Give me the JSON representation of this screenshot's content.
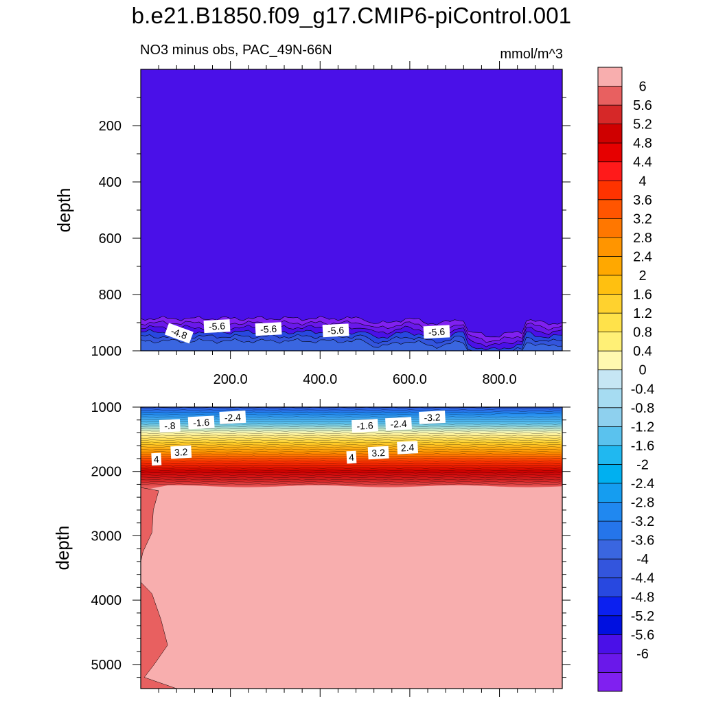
{
  "figure": {
    "title": "b.e21.B1850.f09_g17.CMIP6-piControl.001",
    "left_subtitle": "NO3 minus obs, PAC_49N-66N",
    "right_subtitle": "mmol/m^3"
  },
  "chart_data": [
    {
      "type": "heatmap",
      "panel": "upper",
      "ylabel": "depth",
      "xlabel": "",
      "x_ticks": [
        "200.0",
        "400.0",
        "600.0",
        "800.0"
      ],
      "y_ticks": [
        "200",
        "400",
        "600",
        "800",
        "1000"
      ],
      "xlim": [
        0,
        940
      ],
      "ylim": [
        0,
        1000
      ],
      "y_reversed": true,
      "background_value": -6,
      "bottom_band_depth": [
        885,
        1000
      ],
      "contour_labels": [
        {
          "text": "-4.8",
          "x": 85,
          "depth": 940
        },
        {
          "text": "-5.6",
          "x": 170,
          "depth": 915
        },
        {
          "text": "-5.6",
          "x": 285,
          "depth": 925
        },
        {
          "text": "-5.6",
          "x": 435,
          "depth": 930
        },
        {
          "text": "-5.6",
          "x": 660,
          "depth": 935
        }
      ]
    },
    {
      "type": "heatmap",
      "panel": "lower",
      "ylabel": "depth",
      "xlabel": "",
      "y_ticks": [
        "1000",
        "2000",
        "3000",
        "4000",
        "5000"
      ],
      "xlim": [
        0,
        940
      ],
      "ylim": [
        1000,
        5375
      ],
      "y_reversed": true,
      "gradient_stops": [
        {
          "depth": 1000,
          "value": -4.4
        },
        {
          "depth": 1100,
          "value": -3.2
        },
        {
          "depth": 1250,
          "value": -1.6
        },
        {
          "depth": 1400,
          "value": 0
        },
        {
          "depth": 1550,
          "value": 1.2
        },
        {
          "depth": 1700,
          "value": 2.4
        },
        {
          "depth": 1850,
          "value": 3.6
        },
        {
          "depth": 2000,
          "value": 4.8
        },
        {
          "depth": 2150,
          "value": 5.4
        },
        {
          "depth": 2250,
          "value": 5.8
        }
      ],
      "deep_value": 6.2,
      "contour_labels": [
        {
          "text": "-.8",
          "x": 65,
          "depth": 1300
        },
        {
          "text": "-1.6",
          "x": 135,
          "depth": 1250
        },
        {
          "text": "-2.4",
          "x": 205,
          "depth": 1170
        },
        {
          "text": "-1.6",
          "x": 500,
          "depth": 1300
        },
        {
          "text": "-2.4",
          "x": 575,
          "depth": 1270
        },
        {
          "text": "-3.2",
          "x": 650,
          "depth": 1170
        },
        {
          "text": "4",
          "x": 35,
          "depth": 1820
        },
        {
          "text": "3.2",
          "x": 90,
          "depth": 1710
        },
        {
          "text": "4",
          "x": 470,
          "depth": 1790
        },
        {
          "text": "3.2",
          "x": 530,
          "depth": 1720
        },
        {
          "text": "2.4",
          "x": 595,
          "depth": 1640
        }
      ]
    }
  ],
  "colorbar": {
    "colors": [
      "#f8aeae",
      "#e86060",
      "#d62828",
      "#cf0000",
      "#e60000",
      "#ff1a1a",
      "#ff3300",
      "#ff5500",
      "#ff7700",
      "#ff9500",
      "#ffa800",
      "#ffc010",
      "#ffd22e",
      "#ffe24a",
      "#fff076",
      "#fff9b0",
      "#c6e6f4",
      "#a6dcf2",
      "#8ed0ee",
      "#5ac2ee",
      "#20b8f0",
      "#00b0f0",
      "#159df0",
      "#2088f0",
      "#2575ea",
      "#3a66e0",
      "#3355dd",
      "#2848e0",
      "#0b20f0",
      "#0010e0",
      "#4a10e8",
      "#6a18ea",
      "#8020f0"
    ],
    "labels": [
      "6",
      "5.6",
      "5.2",
      "4.8",
      "4.4",
      "4",
      "3.6",
      "3.2",
      "2.8",
      "2.4",
      "2",
      "1.6",
      "1.2",
      "0.8",
      "0.4",
      "0",
      "-0.4",
      "-0.8",
      "-1.2",
      "-1.6",
      "-2",
      "-2.4",
      "-2.8",
      "-3.2",
      "-3.6",
      "-4",
      "-4.4",
      "-4.8",
      "-5.2",
      "-5.6",
      "-6"
    ]
  }
}
